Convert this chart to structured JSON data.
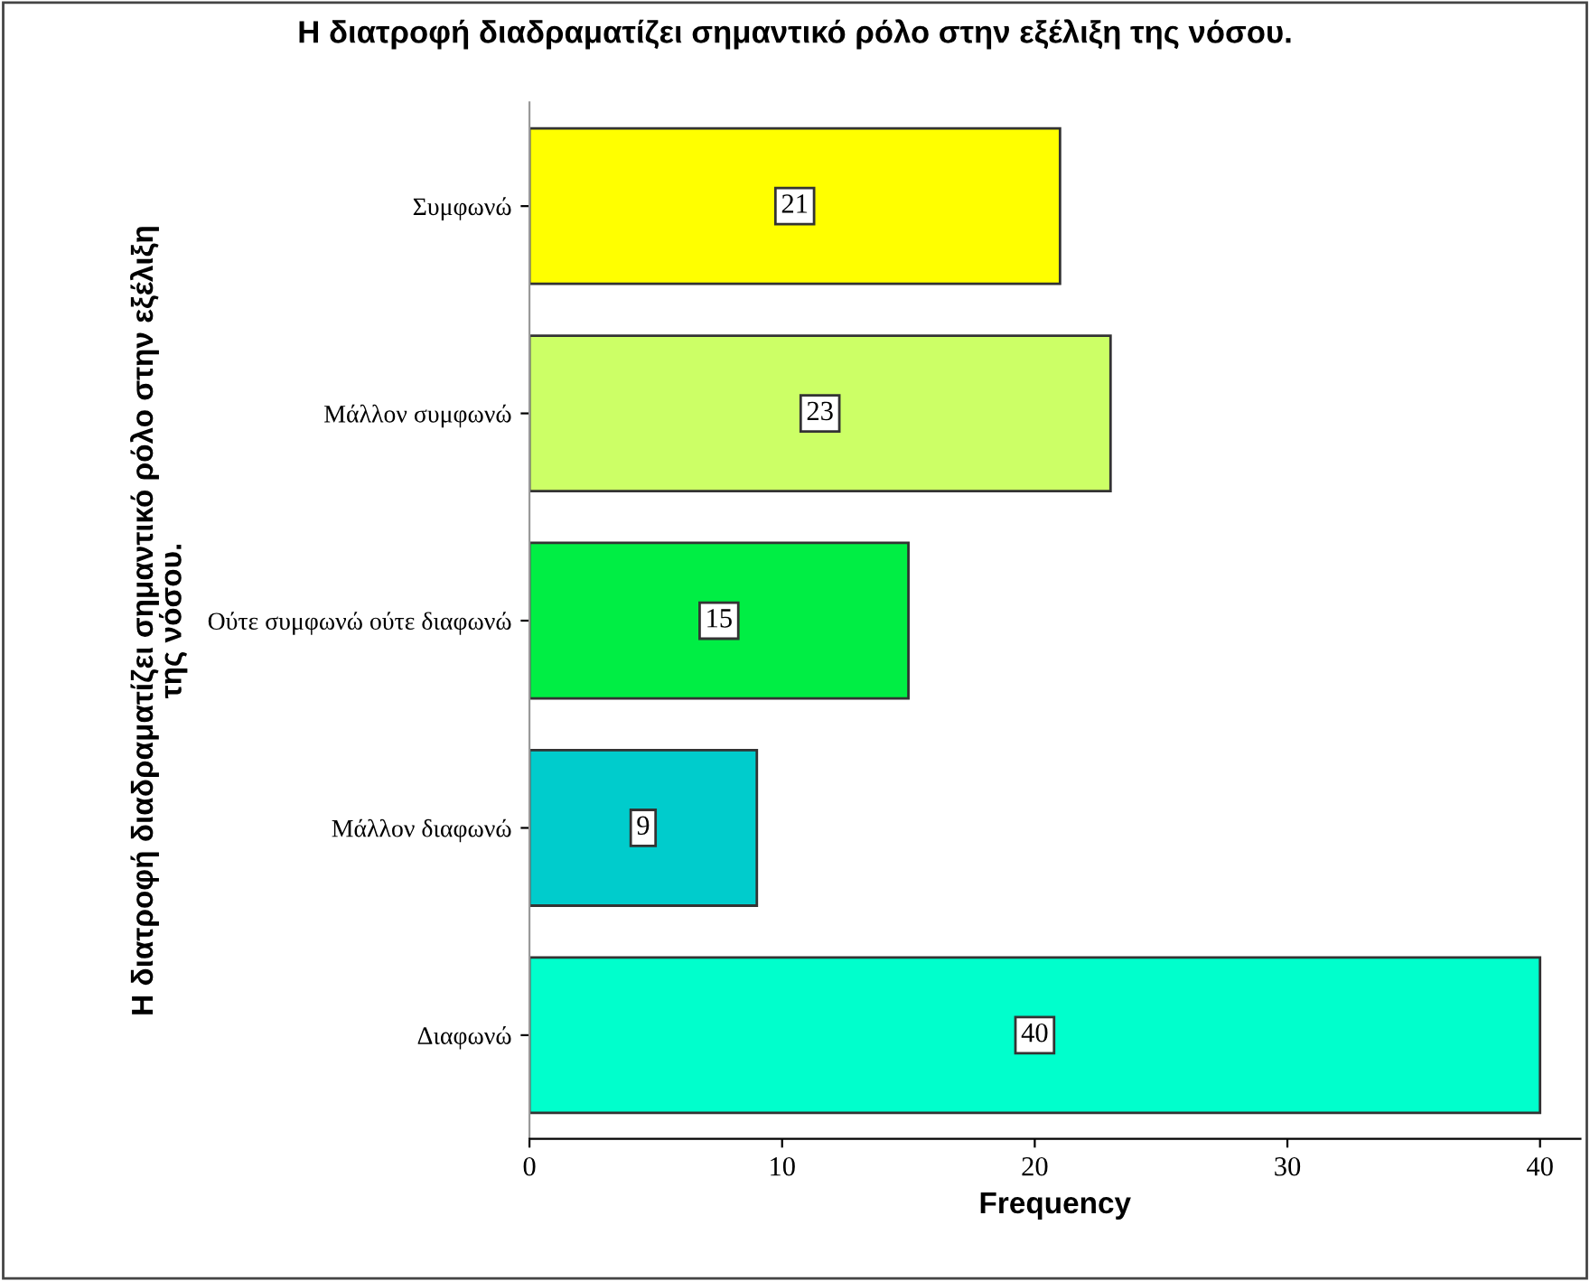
{
  "chart_data": {
    "type": "bar",
    "orientation": "horizontal",
    "title": "Η διατροφή διαδραματίζει σημαντικό ρόλο στην εξέλιξη της νόσου.",
    "xlabel": "Frequency",
    "ylabel": "Η διατροφή διαδραματίζει σημαντικό ρόλο στην εξέλιξη\nτης νόσου.",
    "categories": [
      "Συμφωνώ",
      "Μάλλον συμφωνώ",
      "Ούτε συμφωνώ ούτε διαφωνώ",
      "Μάλλον διαφωνώ",
      "Διαφωνώ"
    ],
    "values": [
      21,
      23,
      15,
      9,
      40
    ],
    "colors": [
      "#ffff00",
      "#ccff66",
      "#00ee44",
      "#00cccc",
      "#00ffcc"
    ],
    "xlim": [
      0,
      41.6
    ],
    "xticks": [
      0,
      10,
      20,
      30,
      40
    ],
    "grid": false,
    "legend": false,
    "data_labels": true
  }
}
